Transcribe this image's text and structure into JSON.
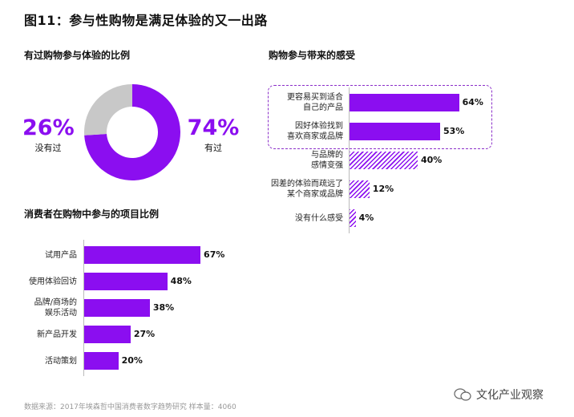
{
  "title": "图11：参与性购物是满足体验的又一出路",
  "source": "数据来源：2017年埃森哲中国消费者数字趋势研究 样本量：4060",
  "watermark": "文化产业观察",
  "colors": {
    "accent": "#8b0ef0",
    "grey": "#c8c8c8"
  },
  "chart_data": [
    {
      "type": "pie",
      "title": "有过购物参与体验的比例",
      "donut": true,
      "slices": [
        {
          "label": "有过",
          "value": 74,
          "display": "74%",
          "color": "#8b0ef0"
        },
        {
          "label": "没有过",
          "value": 26,
          "display": "26%",
          "color": "#c8c8c8"
        }
      ]
    },
    {
      "type": "bar",
      "orientation": "horizontal",
      "title": "消费者在购物中参与的项目比例",
      "categories": [
        [
          "试用产品"
        ],
        [
          "使用体验回访"
        ],
        [
          "品牌/商场的",
          "娱乐活动"
        ],
        [
          "新产品开发"
        ],
        [
          "活动策划"
        ]
      ],
      "values": [
        67,
        48,
        38,
        27,
        20
      ],
      "labels": [
        "67%",
        "48%",
        "38%",
        "27%",
        "20%"
      ]
    },
    {
      "type": "bar",
      "orientation": "horizontal",
      "title": "购物参与带来的感受",
      "categories": [
        [
          "更容易买到适合",
          "自己的产品"
        ],
        [
          "因好体验找到",
          "喜欢商家或品牌"
        ],
        [
          "与品牌的",
          "感情变强"
        ],
        [
          "因差的体验而疏远了",
          "某个商家或品牌"
        ],
        [
          "没有什么感受"
        ]
      ],
      "values": [
        64,
        53,
        40,
        12,
        4
      ],
      "labels": [
        "64%",
        "53%",
        "40%",
        "12%",
        "4%"
      ],
      "highlighted": [
        true,
        true,
        false,
        false,
        false
      ]
    }
  ]
}
